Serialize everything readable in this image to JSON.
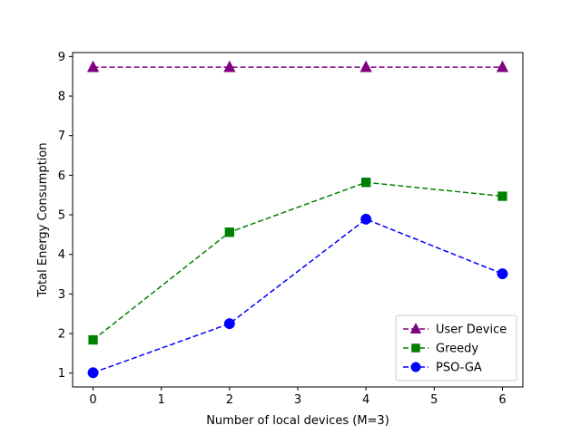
{
  "chart_data": {
    "type": "line",
    "title": "",
    "xlabel": "Number of local devices (M=3)",
    "ylabel": "Total Energy Consumption",
    "x": [
      0,
      2,
      4,
      6
    ],
    "xlim": [
      -0.3,
      6.3
    ],
    "ylim": [
      0.65,
      9.1
    ],
    "xticks": [
      "0",
      "1",
      "2",
      "3",
      "4",
      "5",
      "6"
    ],
    "yticks": [
      "1",
      "2",
      "3",
      "4",
      "5",
      "6",
      "7",
      "8",
      "9"
    ],
    "grid": false,
    "legend_position": "lower-right",
    "series": [
      {
        "name": "User Device",
        "values": [
          8.73,
          8.73,
          8.73,
          8.73
        ],
        "color": "#800080",
        "marker": "triangle",
        "linestyle": "dashed"
      },
      {
        "name": "Greedy",
        "values": [
          1.84,
          4.56,
          5.82,
          5.47
        ],
        "color": "#008000",
        "marker": "square",
        "linestyle": "dashed"
      },
      {
        "name": "PSO-GA",
        "values": [
          1.01,
          2.25,
          4.89,
          3.51
        ],
        "color": "#0000ff",
        "marker": "circle",
        "linestyle": "dashed"
      }
    ]
  }
}
